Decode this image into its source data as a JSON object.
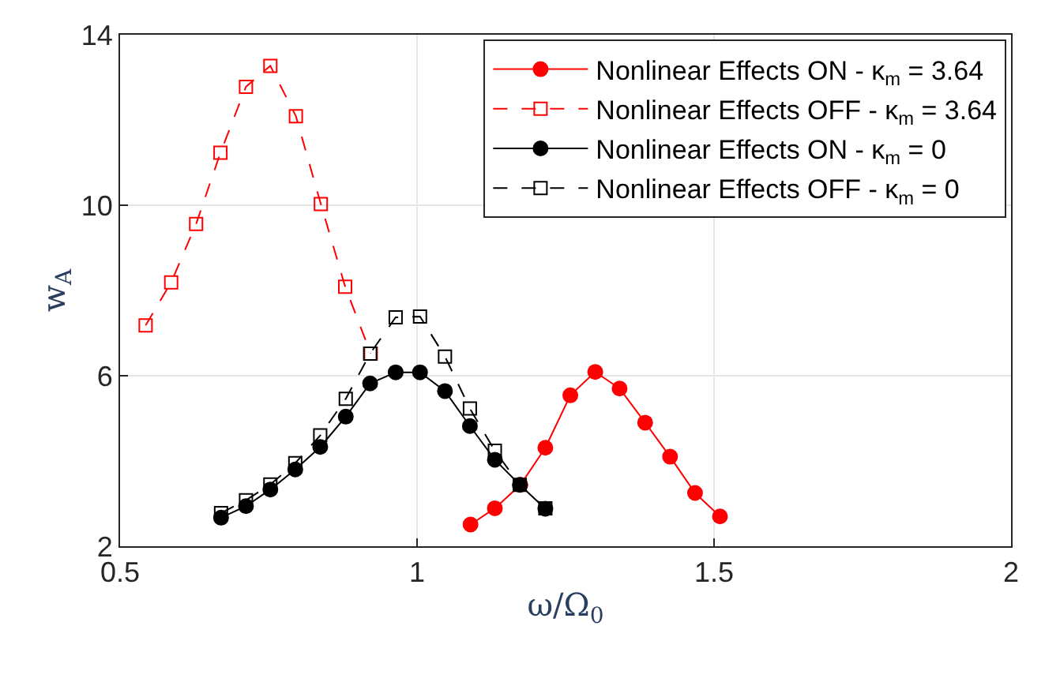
{
  "chart_data": {
    "type": "line",
    "xlabel": "ω/Ω$_{0}$",
    "ylabel": "w$_{A}$",
    "xlim": [
      0.5,
      2
    ],
    "xticks": [
      0.5,
      1,
      1.5,
      2
    ],
    "ylim": [
      2,
      14
    ],
    "yticks": [
      2,
      6,
      10,
      14
    ],
    "grid": true,
    "legend": "top right",
    "series": [
      {
        "name": "Nonlinear Effects ON - κ$_{m}$ = 3.64",
        "color": "#ff0000",
        "marker": "circle",
        "line_style": "solid",
        "x": [
          1.09,
          1.131,
          1.174,
          1.216,
          1.258,
          1.3,
          1.341,
          1.384,
          1.426,
          1.468,
          1.51
        ],
        "values": [
          2.51,
          2.89,
          3.44,
          4.31,
          5.54,
          6.09,
          5.7,
          4.9,
          4.1,
          3.25,
          2.7
        ]
      },
      {
        "name": "Nonlinear Effects OFF - κ$_{m}$ = 3.64",
        "color": "#ff0000",
        "marker": "square",
        "line_style": "dashed",
        "x": [
          0.543,
          0.586,
          0.628,
          0.669,
          0.712,
          0.753,
          0.796,
          0.838,
          0.879,
          0.922
        ],
        "values": [
          7.18,
          8.19,
          9.56,
          11.23,
          12.78,
          13.27,
          12.09,
          10.03,
          8.09,
          6.52
        ]
      },
      {
        "name": "Nonlinear Effects ON - κ$_{m}$ = 0",
        "color": "#000000",
        "marker": "circle",
        "line_style": "solid",
        "x": [
          0.67,
          0.712,
          0.753,
          0.795,
          0.837,
          0.88,
          0.921,
          0.964,
          1.005,
          1.047,
          1.089,
          1.131,
          1.173,
          1.216
        ],
        "values": [
          2.67,
          2.94,
          3.33,
          3.8,
          4.33,
          5.04,
          5.82,
          6.08,
          6.08,
          5.64,
          4.82,
          4.03,
          3.44,
          2.88
        ]
      },
      {
        "name": "Nonlinear Effects OFF - κ$_{m}$ = 0",
        "color": "#000000",
        "marker": "square",
        "line_style": "dashed",
        "x": [
          0.67,
          0.712,
          0.753,
          0.795,
          0.837,
          0.88,
          0.921,
          0.964,
          1.005,
          1.047,
          1.089,
          1.131,
          1.173,
          1.216
        ],
        "values": [
          2.78,
          3.08,
          3.45,
          3.95,
          4.6,
          5.46,
          6.52,
          7.37,
          7.39,
          6.45,
          5.23,
          4.24,
          3.44,
          2.89
        ]
      }
    ]
  }
}
